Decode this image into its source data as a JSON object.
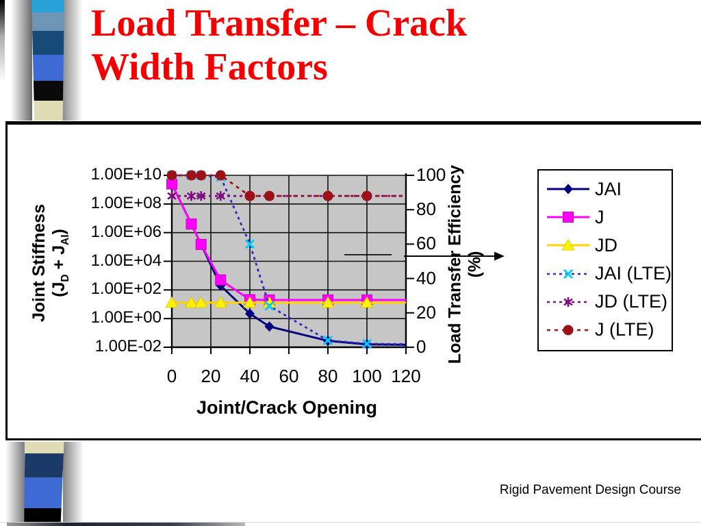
{
  "slide": {
    "title_line1": "Load Transfer – Crack",
    "title_line2": "Width Factors",
    "title_color": "#F40000",
    "footer": "Rigid Pavement Design Course"
  },
  "decoration": {
    "top_bar_colors": [
      "#2AA0D8",
      "#6E95B5",
      "#174A77",
      "#3E6BD3",
      "#0A0A0A",
      "#DFDBB5"
    ],
    "top_bar_heights": [
      18,
      27,
      35,
      38,
      29,
      29
    ],
    "bottom_bar_colors": [
      "#DFDBB5",
      "#1B3B66",
      "#3E6BD3",
      "#000000"
    ],
    "bottom_bar_heights": [
      17,
      35,
      45,
      26
    ]
  },
  "chart_data": {
    "type": "line",
    "plot_bg": "#C6C6C6",
    "grid": true,
    "xlabel": "Joint/Crack Opening",
    "x_ticks": [
      0,
      20,
      40,
      60,
      80,
      100,
      120
    ],
    "x_range": [
      0,
      120
    ],
    "left_axis": {
      "label_line1": "Joint Stiffness",
      "label_sub_segments": [
        "(J",
        "D",
        " + J",
        "AI",
        ")"
      ],
      "scale": "log",
      "tick_labels": [
        "1.00E+10",
        "1.00E+08",
        "1.00E+06",
        "1.00E+04",
        "1.00E+02",
        "1.00E+00",
        "1.00E-02"
      ],
      "exp_range": [
        -2,
        10
      ]
    },
    "right_axis": {
      "label_line1": "Load Transfer Efficiency",
      "label_line2": "(%)",
      "ticks": [
        100,
        80,
        60,
        40,
        20,
        0
      ],
      "range": [
        0,
        100
      ]
    },
    "x": [
      0,
      10,
      15,
      25,
      40,
      50,
      80,
      100,
      120
    ],
    "series": [
      {
        "name": "JAI",
        "axis": "left",
        "dash": "solid",
        "color": "#00007E",
        "marker": "diamond",
        "marker_color": "#00007E",
        "values": [
          2500000000.0,
          4000000.0,
          150000,
          200,
          2.2,
          0.28,
          0.028,
          0.016,
          0.015
        ]
      },
      {
        "name": "J",
        "axis": "left",
        "dash": "solid",
        "color": "#FF00FF",
        "marker": "square",
        "marker_color": "#FF00FF",
        "values": [
          2500000000.0,
          4000000.0,
          150000,
          500,
          21,
          20,
          20,
          20,
          20
        ]
      },
      {
        "name": "JD",
        "axis": "left",
        "dash": "solid",
        "color": "#FFD300",
        "marker": "triangle",
        "marker_color": "#FFF200",
        "values": [
          13,
          13,
          13,
          13,
          13,
          13,
          13,
          13,
          13
        ]
      },
      {
        "name": "JAI (LTE)",
        "axis": "right",
        "dash": "dashed",
        "color": "#2929CC",
        "marker": "x",
        "marker_color": "#00CCFF",
        "values": [
          100,
          100,
          100,
          99,
          60,
          24,
          4,
          2,
          1.8
        ]
      },
      {
        "name": "JD (LTE)",
        "axis": "right",
        "dash": "dashed",
        "color": "#7D0C7E",
        "marker": "asterisk",
        "marker_color": "#7D0C7E",
        "values": [
          88,
          88,
          88,
          88,
          88,
          88,
          88,
          88,
          88
        ]
      },
      {
        "name": "J (LTE)",
        "axis": "right",
        "dash": "dotted",
        "color": "#9B1117",
        "marker": "circle",
        "marker_color": "#9B1117",
        "values": [
          100,
          100,
          100,
          100,
          88,
          88,
          88,
          88,
          88
        ]
      }
    ],
    "annotation": {
      "arrow_y_right_value": 53
    }
  }
}
